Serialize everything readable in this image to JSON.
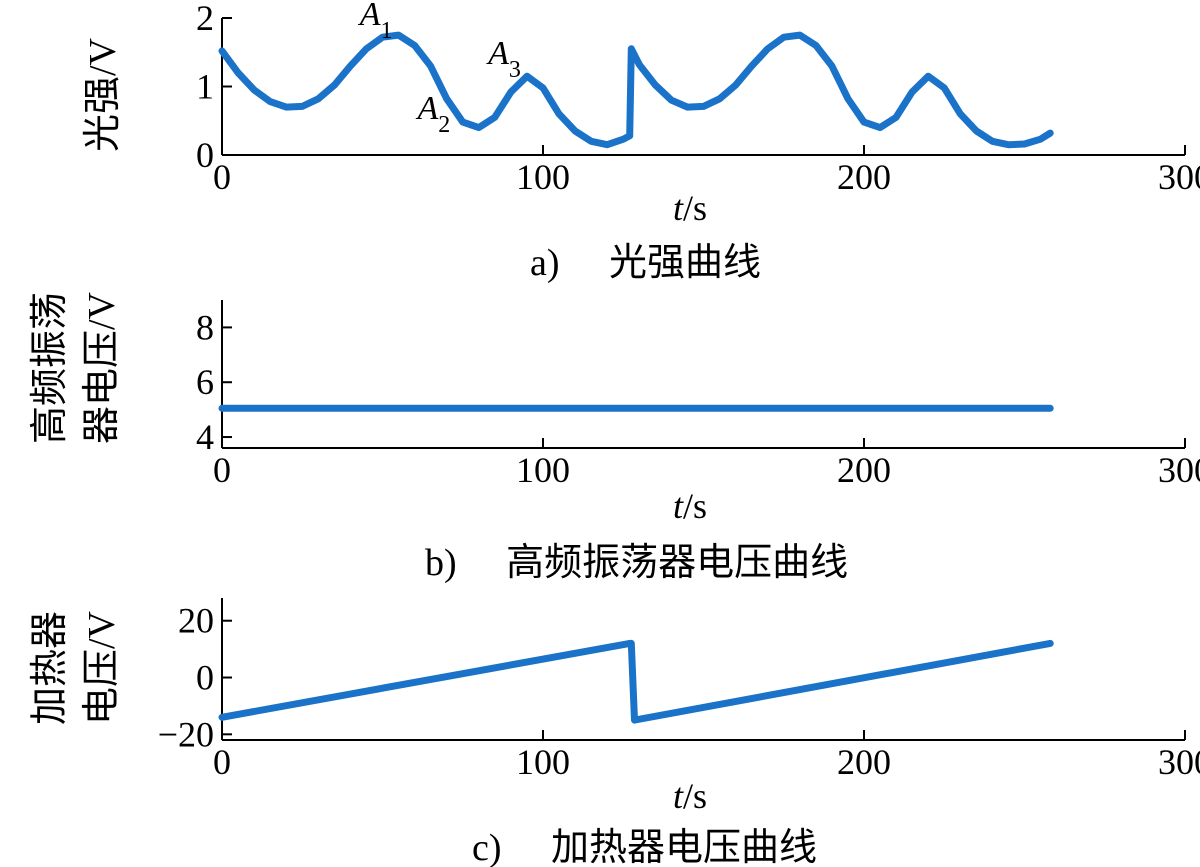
{
  "chart_data": [
    {
      "type": "line",
      "ylabel": "光强/V",
      "xlabel": "t/s",
      "caption_index": "a)",
      "caption": "光强曲线",
      "xlim": [
        0,
        300
      ],
      "ylim": [
        0,
        2
      ],
      "xticks": [
        0,
        100,
        200,
        300
      ],
      "yticks": [
        0,
        1,
        2
      ],
      "annotations": [
        {
          "label": "A",
          "sub": "1",
          "x": 48,
          "y": 1.72
        },
        {
          "label": "A",
          "sub": "2",
          "x": 66,
          "y": 0.35
        },
        {
          "label": "A",
          "sub": "3",
          "x": 88,
          "y": 1.15
        }
      ],
      "series": [
        {
          "x": [
            0,
            5,
            10,
            15,
            20,
            25,
            30,
            35,
            40,
            45,
            50,
            55,
            60,
            65,
            70,
            75,
            80,
            85,
            90,
            95,
            100,
            105,
            110,
            115,
            120,
            125,
            127,
            127.5,
            130,
            135,
            140,
            145,
            150,
            155,
            160,
            165,
            170,
            175,
            180,
            185,
            190,
            195,
            200,
            205,
            210,
            215,
            220,
            225,
            230,
            235,
            240,
            245,
            250,
            255,
            258
          ],
          "y": [
            1.52,
            1.2,
            0.95,
            0.78,
            0.7,
            0.71,
            0.82,
            1.02,
            1.3,
            1.55,
            1.72,
            1.75,
            1.6,
            1.3,
            0.82,
            0.48,
            0.4,
            0.55,
            0.92,
            1.15,
            0.98,
            0.6,
            0.35,
            0.2,
            0.15,
            0.23,
            0.28,
            1.55,
            1.32,
            1.02,
            0.8,
            0.7,
            0.71,
            0.82,
            1.02,
            1.3,
            1.55,
            1.72,
            1.75,
            1.6,
            1.3,
            0.82,
            0.48,
            0.4,
            0.55,
            0.92,
            1.15,
            0.98,
            0.6,
            0.35,
            0.2,
            0.15,
            0.16,
            0.23,
            0.32
          ]
        }
      ]
    },
    {
      "type": "line",
      "ylabel_lines": [
        "高频振荡",
        "器电压/V"
      ],
      "xlabel": "t/s",
      "caption_index": "b)",
      "caption": "高频振荡器电压曲线",
      "xlim": [
        0,
        300
      ],
      "ylim": [
        3.6,
        9
      ],
      "xticks": [
        0,
        100,
        200,
        300
      ],
      "yticks": [
        4,
        6,
        8
      ],
      "series": [
        {
          "x": [
            0,
            258
          ],
          "y": [
            5.05,
            5.05
          ]
        }
      ]
    },
    {
      "type": "line",
      "ylabel_lines": [
        "加热器",
        "电压/V"
      ],
      "xlabel": "t/s",
      "caption_index": "c)",
      "caption": "加热器电压曲线",
      "xlim": [
        0,
        300
      ],
      "ylim": [
        -22,
        28
      ],
      "xticks": [
        0,
        100,
        200,
        300
      ],
      "yticks": [
        -20,
        0,
        20
      ],
      "series": [
        {
          "x": [
            0,
            127,
            127.5,
            128.5,
            258
          ],
          "y": [
            -14,
            12,
            12,
            -15,
            12
          ]
        }
      ]
    }
  ],
  "colors": {
    "series": "#1a73c8",
    "axis": "#000000"
  }
}
